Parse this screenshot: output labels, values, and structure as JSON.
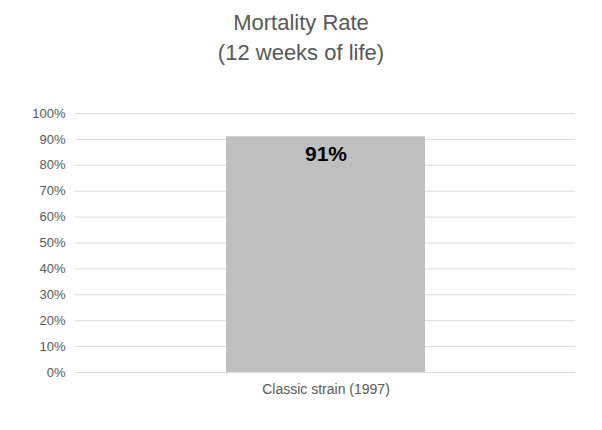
{
  "chart_data": {
    "type": "bar",
    "title": "Mortality Rate",
    "subtitle": "(12 weeks of life)",
    "categories": [
      "Classic strain (1997)"
    ],
    "values": [
      91
    ],
    "value_labels": [
      "91%"
    ],
    "color": "#bfbfbf",
    "data_labels": true,
    "grid": true,
    "ylim": [
      0,
      100
    ],
    "yticks": [
      {
        "value": 0,
        "label": "0%"
      },
      {
        "value": 10,
        "label": "10%"
      },
      {
        "value": 20,
        "label": "20%"
      },
      {
        "value": 30,
        "label": "30%"
      },
      {
        "value": 40,
        "label": "40%"
      },
      {
        "value": 50,
        "label": "50%"
      },
      {
        "value": 60,
        "label": "60%"
      },
      {
        "value": 70,
        "label": "70%"
      },
      {
        "value": 80,
        "label": "80%"
      },
      {
        "value": 90,
        "label": "90%"
      },
      {
        "value": 100,
        "label": "100%"
      }
    ]
  }
}
